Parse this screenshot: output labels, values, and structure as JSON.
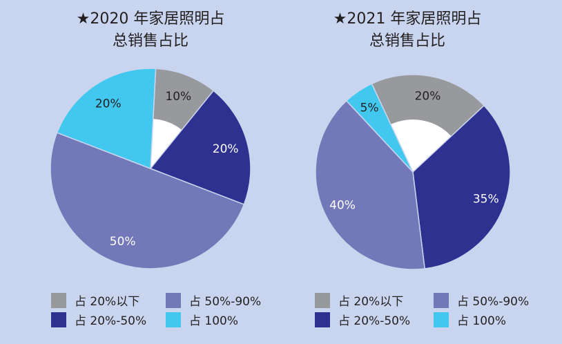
{
  "chart_data": [
    {
      "type": "pie",
      "donut": true,
      "title": "★2020 年家居照明占总销售占比",
      "title_lines": [
        "★2020 年家居照明占",
        "总销售占比"
      ],
      "slices": [
        {
          "category": "占 20%以下",
          "value": 10,
          "label": "10%"
        },
        {
          "category": "占 20%-50%",
          "value": 20,
          "label": "20%"
        },
        {
          "category": "占 50%-90%",
          "value": 50,
          "label": "50%"
        },
        {
          "category": "占 100%",
          "value": 20,
          "label": "20%"
        }
      ],
      "legend_placement": "bottom"
    },
    {
      "type": "pie",
      "donut": true,
      "title": "★2021 年家居照明占总销售占比",
      "title_lines": [
        "★2021 年家居照明占",
        "总销售占比"
      ],
      "slices": [
        {
          "category": "占 20%以下",
          "value": 20,
          "label": "20%"
        },
        {
          "category": "占 20%-50%",
          "value": 35,
          "label": "35%"
        },
        {
          "category": "占 50%-90%",
          "value": 40,
          "label": "40%"
        },
        {
          "category": "占 100%",
          "value": 5,
          "label": "5%"
        }
      ],
      "legend_placement": "bottom"
    }
  ],
  "legend": [
    {
      "label": "占 20%以下",
      "color": "#97999d"
    },
    {
      "label": "占 50%-90%",
      "color": "#7378b8"
    },
    {
      "label": "占 20%-50%",
      "color": "#2e3190"
    },
    {
      "label": "占 100%",
      "color": "#42c8ef"
    }
  ],
  "colors": {
    "占 20%以下": "#97999d",
    "占 20%-50%": "#2e3190",
    "占 50%-90%": "#7378b8",
    "占 100%": "#42c8ef",
    "background": "#c9d5ee"
  }
}
